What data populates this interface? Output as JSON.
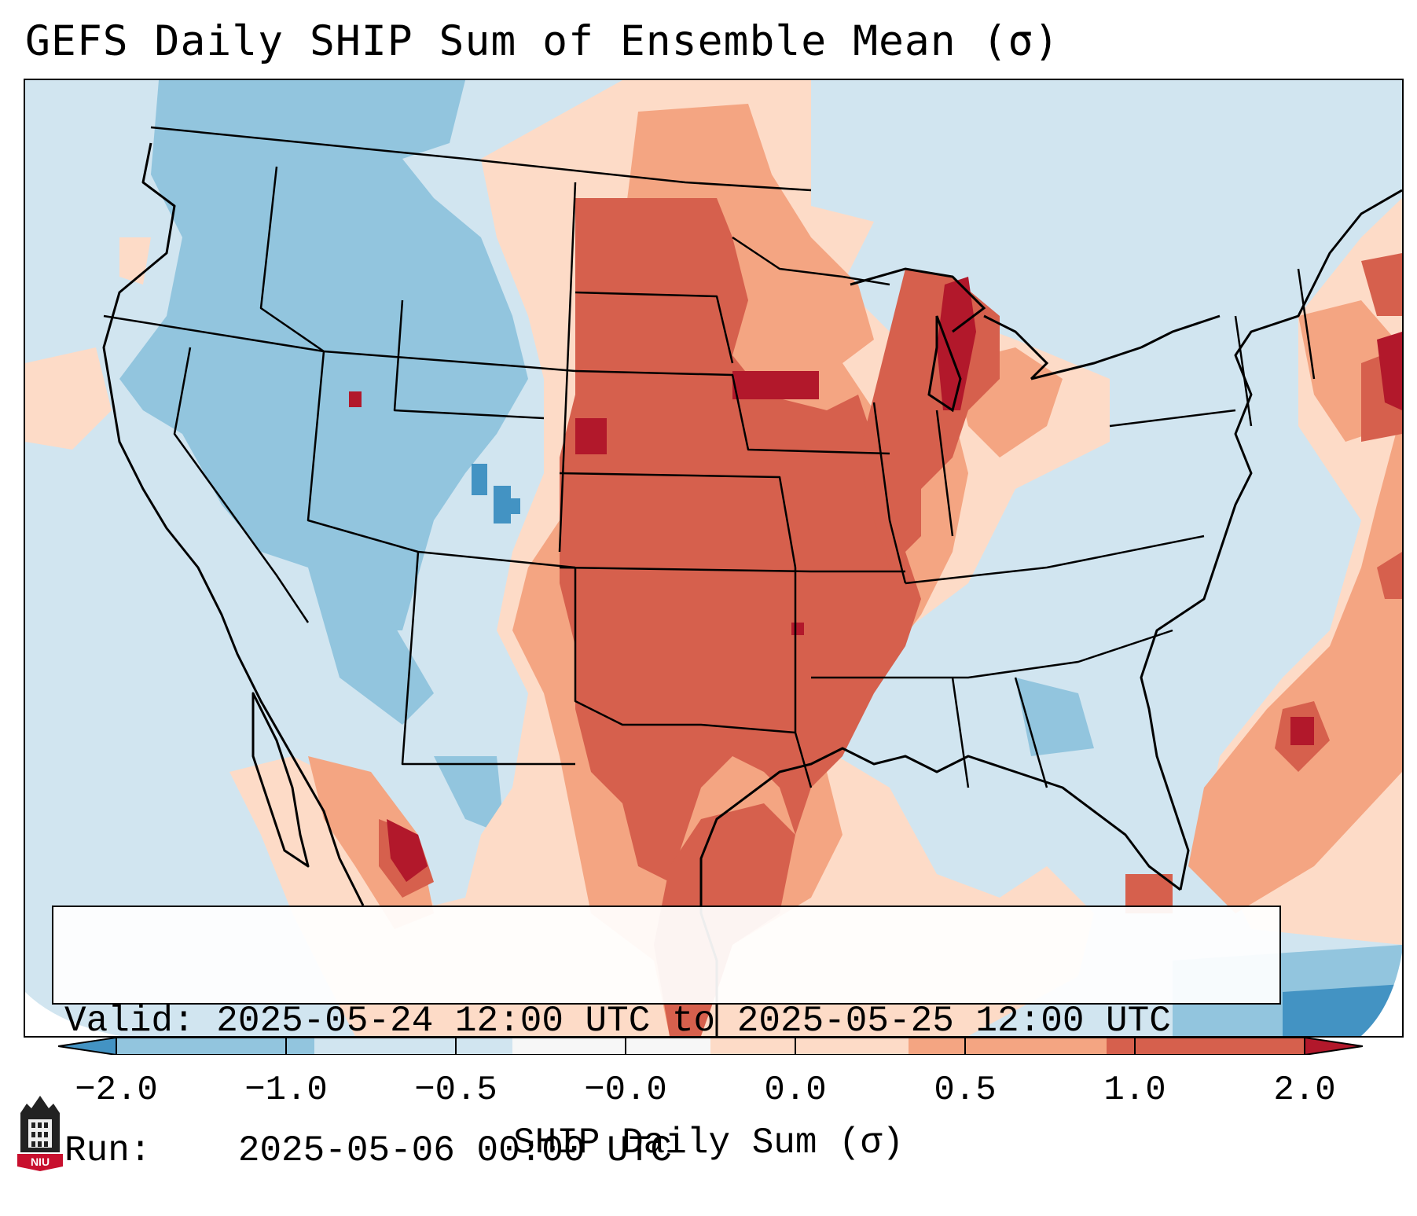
{
  "title": "GEFS Daily SHIP Sum of Ensemble Mean (σ)",
  "info": {
    "valid_label": "Valid:",
    "valid_value": "2025-05-24 12:00 UTC to 2025-05-25 12:00 UTC",
    "run_label": "Run:",
    "run_value": "2025-05-06 00:00 UTC"
  },
  "colorbar": {
    "label": "SHIP Daily Sum (σ)",
    "ticks": [
      "−2.0",
      "−1.0",
      "−0.5",
      "−0.0",
      "0.0",
      "0.5",
      "1.0",
      "2.0"
    ],
    "colors": [
      "#4393c3",
      "#92c5de",
      "#d1e5f0",
      "#f7f7f7",
      "#fddbc7",
      "#f4a582",
      "#d6604d",
      "#b2182b"
    ],
    "extend": "both"
  },
  "logo": {
    "text": "NIU"
  }
}
